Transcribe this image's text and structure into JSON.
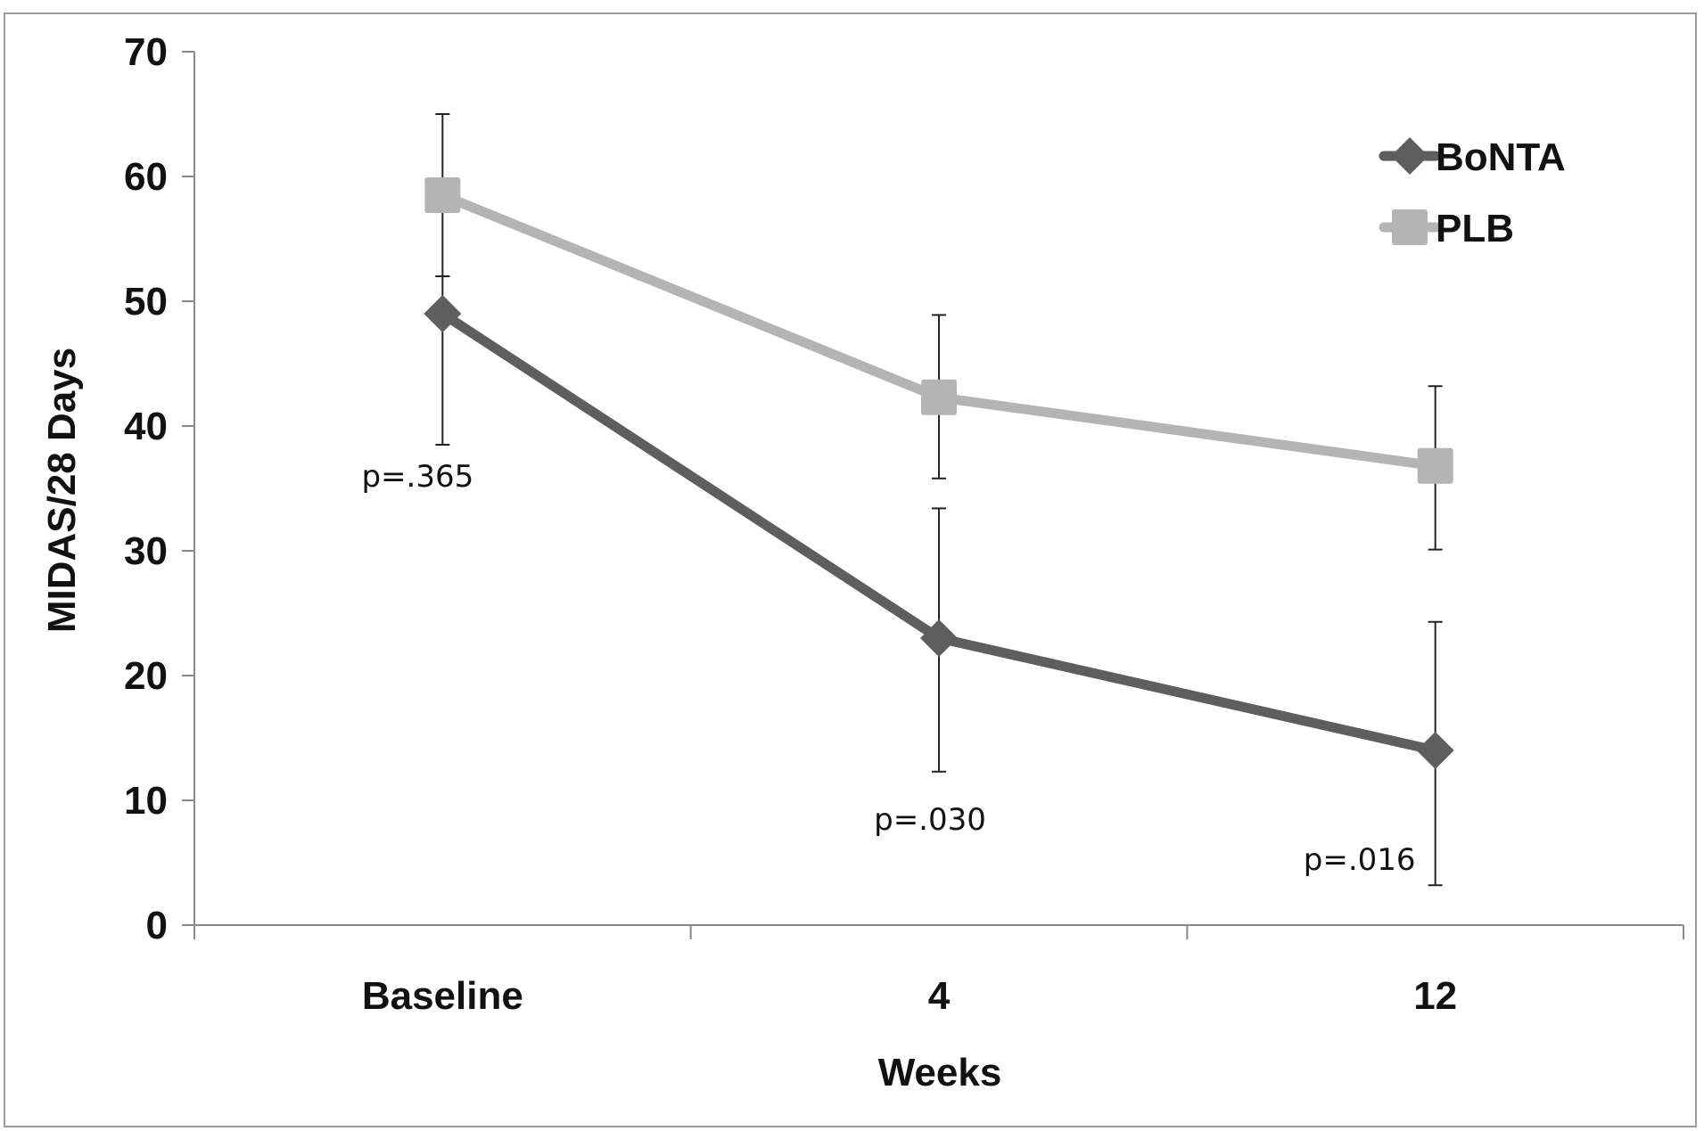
{
  "chart_data": {
    "type": "line",
    "title": "",
    "xlabel": "Weeks",
    "ylabel": "MIDAS/28 Days",
    "categories": [
      "Baseline",
      "4",
      "12"
    ],
    "ylim": [
      0,
      70
    ],
    "yticks": [
      "0",
      "10",
      "20",
      "30",
      "40",
      "50",
      "60",
      "70"
    ],
    "legend_position": "top-right",
    "series": [
      {
        "name": "BoNTA",
        "color": "#5e5e5e",
        "marker": "diamond",
        "values": [
          49,
          23,
          14
        ],
        "error_low": [
          38.5,
          12.3,
          3.2
        ],
        "error_high": [
          52,
          33.4,
          24.3
        ]
      },
      {
        "name": "PLB",
        "color": "#b4b4b4",
        "marker": "square",
        "values": [
          58.5,
          42.3,
          36.8
        ],
        "error_low": [
          52,
          35.8,
          30.1
        ],
        "error_high": [
          65,
          48.9,
          43.2
        ]
      }
    ],
    "annotations": [
      "p=.365",
      "p=.030",
      "p=.016"
    ],
    "annotation_values": [
      36,
      8.5,
      5.3
    ]
  }
}
